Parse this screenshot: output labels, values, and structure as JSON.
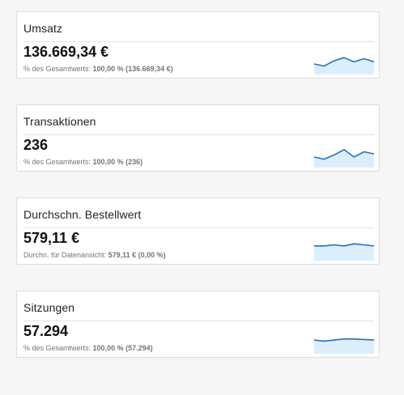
{
  "accent_color": "#1a73c8",
  "sparkline_fill": "#dceefb",
  "cards": [
    {
      "title": "Umsatz",
      "value": "136.669,34 €",
      "sub_label": "% des Gesamtwerts:",
      "sub_value": "100,00 % (136.669,34 €)",
      "trend": [
        10,
        8,
        13,
        16,
        12,
        15,
        12
      ]
    },
    {
      "title": "Transaktionen",
      "value": "236",
      "sub_label": "% des Gesamtwerts:",
      "sub_value": "100,00 % (236)",
      "trend": [
        10,
        8,
        12,
        17,
        10,
        15,
        13
      ]
    },
    {
      "title": "Durchschn. Bestellwert",
      "value": "579,11 €",
      "sub_label": "Durchn. für Datenansicht:",
      "sub_value": "579,11 € (0,00 %)",
      "trend": [
        14,
        14,
        15,
        14,
        16,
        15,
        14
      ]
    },
    {
      "title": "Sitzungen",
      "value": "57.294",
      "sub_label": "% des Gesamtwerts:",
      "sub_value": "100,00 % (57.294)",
      "trend": [
        13,
        12,
        13,
        14,
        14,
        13.5,
        13
      ]
    }
  ]
}
